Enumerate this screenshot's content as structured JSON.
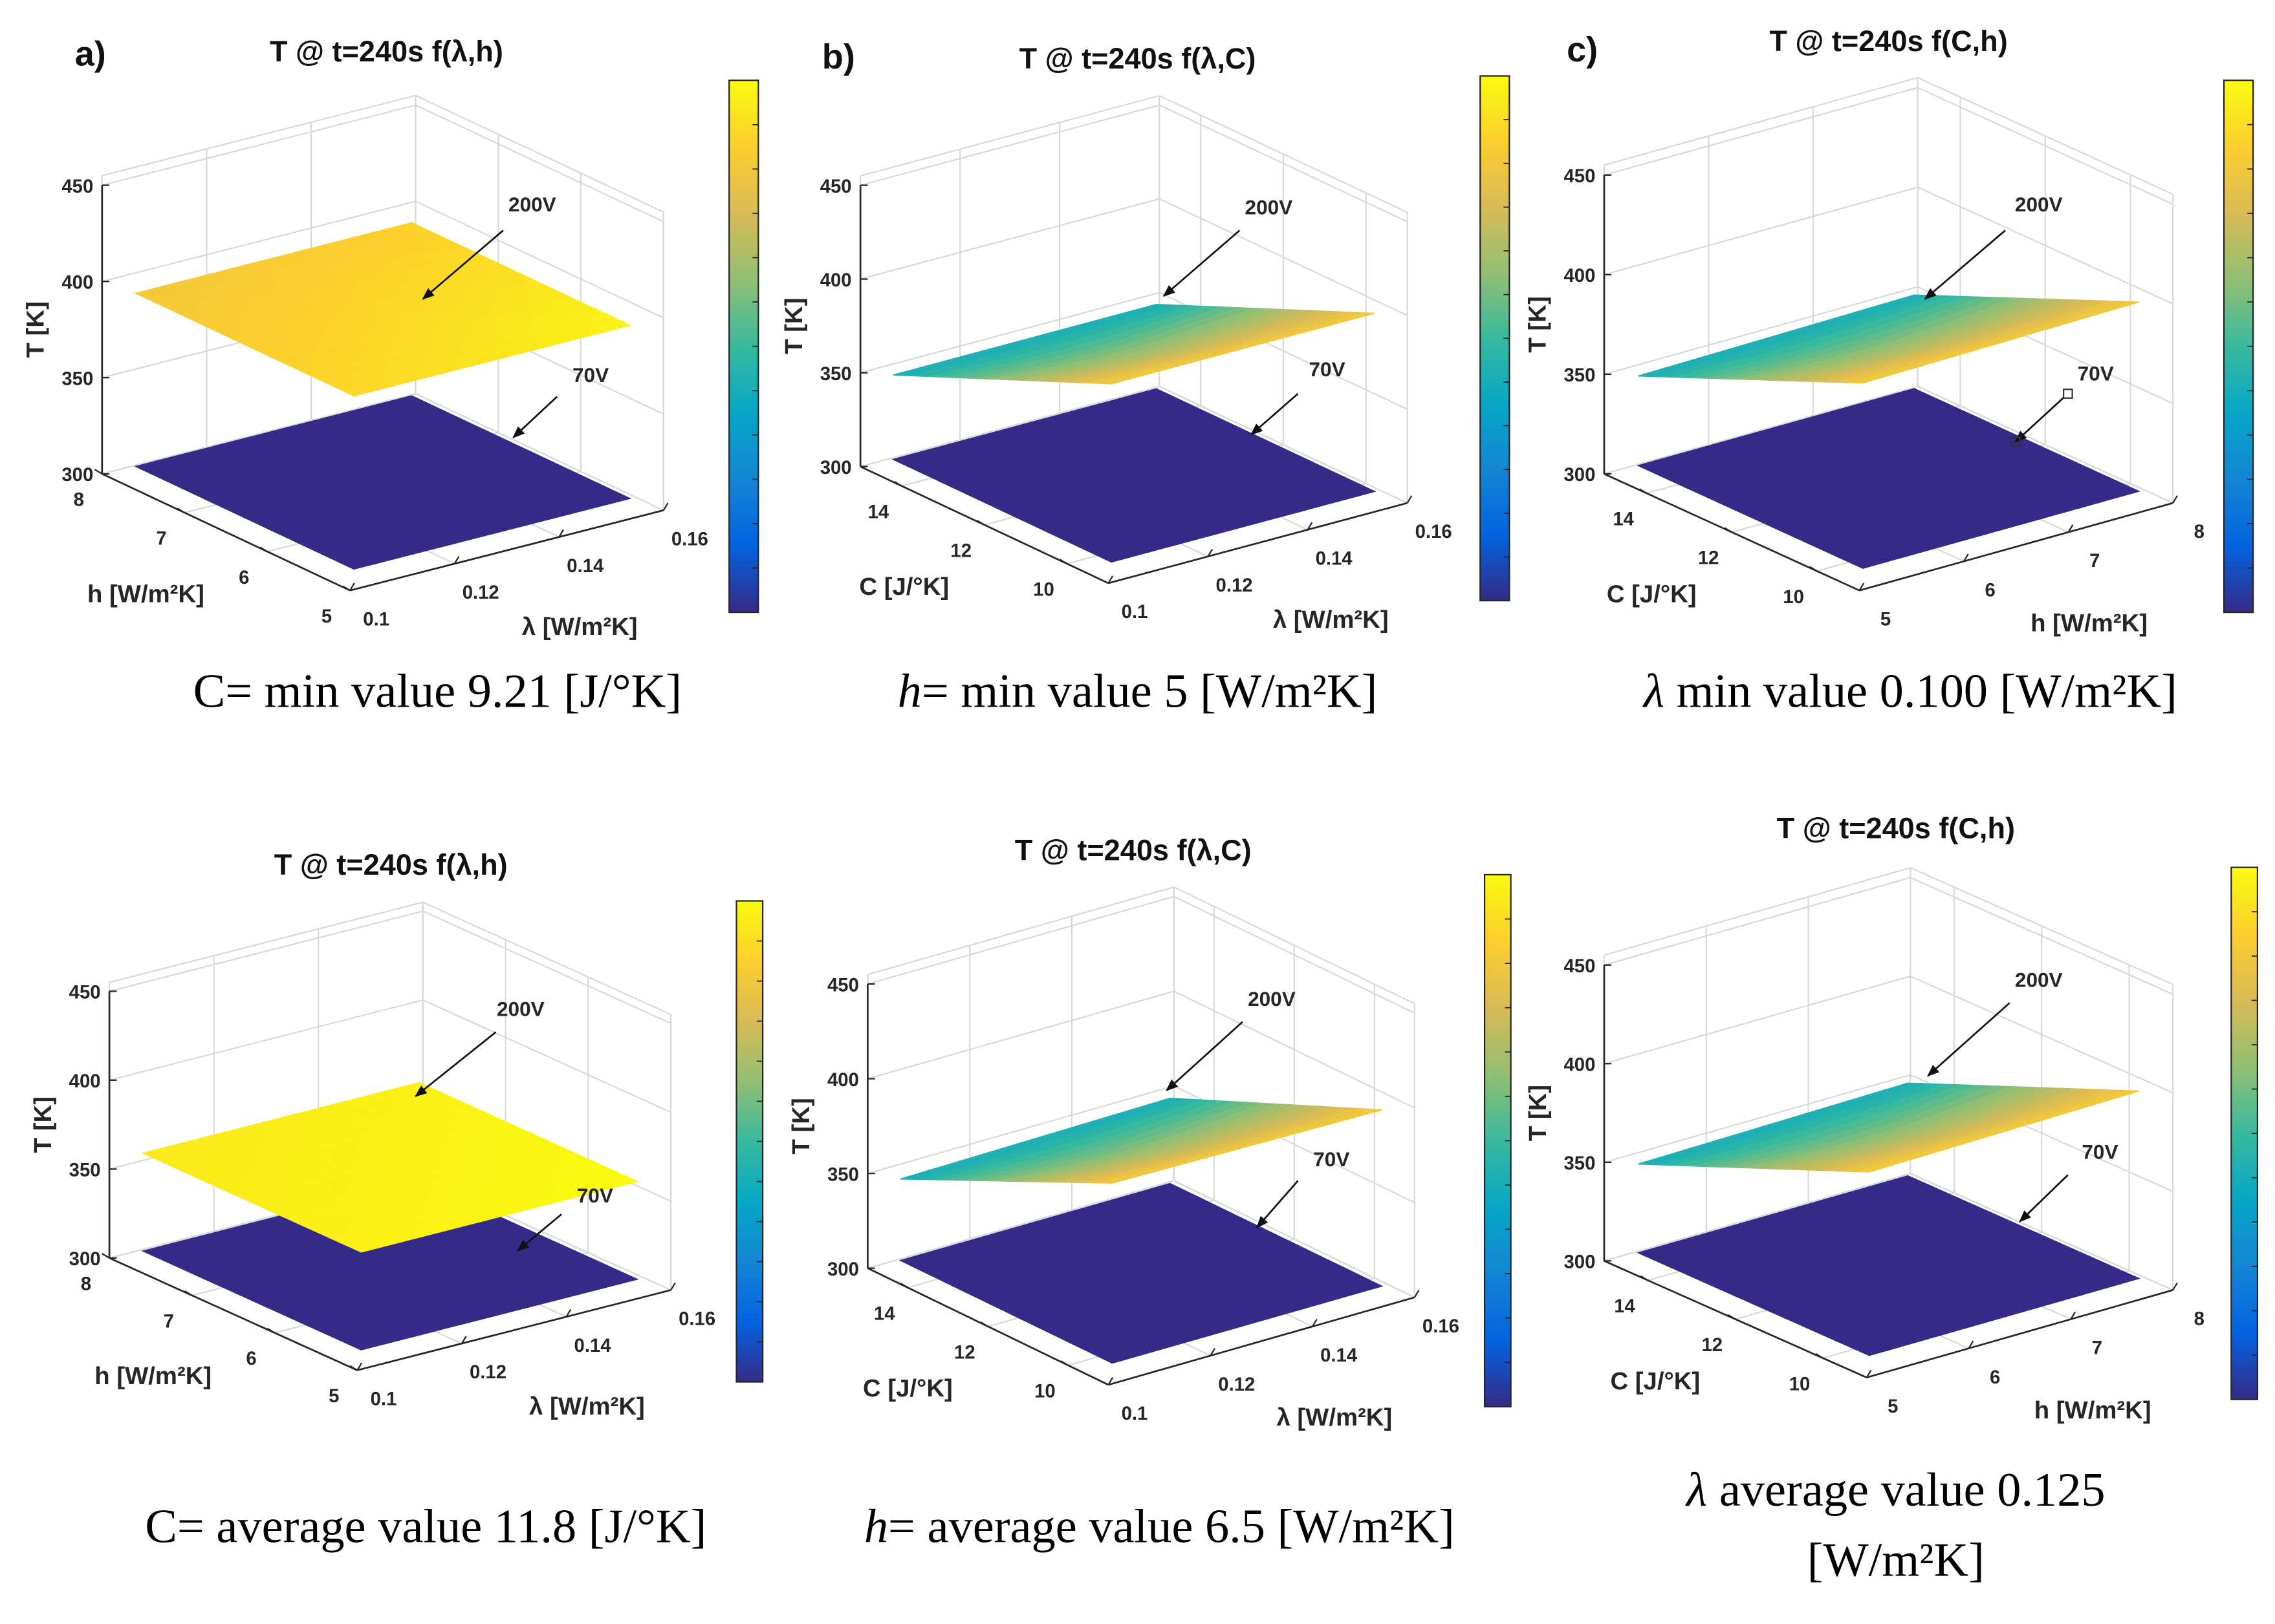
{
  "chart_data": [
    {
      "type": "surface3d",
      "panel_letter": "a)",
      "title": "T @ t=240s f(λ,h)",
      "zlabel": "T [K]",
      "v_label": "h [W/m²K]",
      "u_label": "λ [W/m²K]",
      "v_range": [
        5,
        8
      ],
      "v_ticks": [
        "5",
        "6",
        "7",
        "8"
      ],
      "u_range": [
        0.1,
        0.16
      ],
      "u_ticks": [
        "0.1",
        "0.12",
        "0.14",
        "0.16"
      ],
      "zlim": [
        300,
        450
      ],
      "z_ticks": [
        "300",
        "350",
        "400",
        "450"
      ],
      "colormap": "parula",
      "surfaces": [
        {
          "label": "70V",
          "T_corners": [
            305,
            305,
            305,
            305
          ],
          "color_levels": [
            0,
            0,
            0,
            0
          ]
        },
        {
          "label": "200V",
          "T_corners": [
            395,
            395,
            395,
            395
          ],
          "color_levels": [
            0.9,
            0.98,
            0.88,
            0.84
          ]
        }
      ],
      "caption": {
        "var": "C",
        "var_italic": false,
        "lines": [
          "= min value 9.21 [J/°K]"
        ]
      }
    },
    {
      "type": "surface3d",
      "panel_letter": "b)",
      "title": "T @ t=240s f(λ,C)",
      "zlabel": "T [K]",
      "v_label": "C [J/°K]",
      "u_label": "λ [W/m²K]",
      "v_range": [
        9,
        15
      ],
      "v_ticks": [
        "10",
        "12",
        "14"
      ],
      "u_range": [
        0.1,
        0.16
      ],
      "u_ticks": [
        "0.1",
        "0.12",
        "0.14",
        "0.16"
      ],
      "zlim": [
        300,
        450
      ],
      "z_ticks": [
        "300",
        "350",
        "400",
        "450"
      ],
      "colormap": "parula",
      "surfaces": [
        {
          "label": "70V",
          "T_corners": [
            305,
            305,
            305,
            305
          ],
          "color_levels": [
            0,
            0,
            0,
            0
          ]
        },
        {
          "label": "200V",
          "T_corners": [
            400,
            400,
            350,
            350
          ],
          "color_levels": [
            0.85,
            0.85,
            0.42,
            0.42
          ]
        }
      ],
      "caption": {
        "var": "h",
        "var_italic": true,
        "lines": [
          "= min value 5 [W/m²K]"
        ]
      }
    },
    {
      "type": "surface3d",
      "panel_letter": "c)",
      "title": "T @ t=240s f(C,h)",
      "zlabel": "T [K]",
      "v_label": "C [J/°K]",
      "u_label": "h [W/m²K]",
      "v_range": [
        9,
        15
      ],
      "v_ticks": [
        "10",
        "12",
        "14"
      ],
      "u_range": [
        5,
        8
      ],
      "u_ticks": [
        "5",
        "6",
        "7",
        "8"
      ],
      "zlim": [
        300,
        450
      ],
      "z_ticks": [
        "300",
        "350",
        "400",
        "450"
      ],
      "colormap": "parula",
      "surfaces": [
        {
          "label": "70V",
          "T_corners": [
            305,
            305,
            305,
            305
          ],
          "color_levels": [
            0,
            0,
            0,
            0
          ]
        },
        {
          "label": "200V",
          "T_corners": [
            398,
            400,
            352,
            350
          ],
          "color_levels": [
            0.85,
            0.85,
            0.42,
            0.42
          ]
        }
      ],
      "caption": {
        "var": "λ",
        "var_italic": true,
        "lines": [
          " min value 0.100 [W/m²K]"
        ]
      }
    },
    {
      "type": "surface3d",
      "panel_letter": "",
      "title": "T @ t=240s f(λ,h)",
      "zlabel": "T [K]",
      "v_label": "h [W/m²K]",
      "u_label": "λ [W/m²K]",
      "v_range": [
        5,
        8
      ],
      "v_ticks": [
        "5",
        "6",
        "7",
        "8"
      ],
      "u_range": [
        0.1,
        0.16
      ],
      "u_ticks": [
        "0.1",
        "0.12",
        "0.14",
        "0.16"
      ],
      "zlim": [
        300,
        450
      ],
      "z_ticks": [
        "300",
        "350",
        "400",
        "450"
      ],
      "colormap": "parula",
      "surfaces": [
        {
          "label": "70V",
          "T_corners": [
            305,
            305,
            305,
            305
          ],
          "color_levels": [
            0,
            0,
            0,
            0
          ]
        },
        {
          "label": "200V",
          "T_corners": [
            360,
            360,
            360,
            360
          ],
          "color_levels": [
            0.97,
            1,
            0.97,
            0.95
          ]
        }
      ],
      "caption": {
        "var": "C",
        "var_italic": false,
        "lines": [
          "= average value 11.8 [J/°K]"
        ]
      }
    },
    {
      "type": "surface3d",
      "panel_letter": "",
      "title": "T @ t=240s f(λ,C)",
      "zlabel": "T [K]",
      "v_label": "C [J/°K]",
      "u_label": "λ [W/m²K]",
      "v_range": [
        9,
        15
      ],
      "v_ticks": [
        "10",
        "12",
        "14"
      ],
      "u_range": [
        0.1,
        0.16
      ],
      "u_ticks": [
        "0.1",
        "0.12",
        "0.14",
        "0.16"
      ],
      "zlim": [
        300,
        450
      ],
      "z_ticks": [
        "300",
        "350",
        "400",
        "450"
      ],
      "colormap": "parula",
      "surfaces": [
        {
          "label": "70V",
          "T_corners": [
            305,
            305,
            305,
            305
          ],
          "color_levels": [
            0,
            0,
            0,
            0
          ]
        },
        {
          "label": "200V",
          "T_corners": [
            400,
            398,
            350,
            348
          ],
          "color_levels": [
            0.85,
            0.85,
            0.42,
            0.42
          ]
        }
      ],
      "caption": {
        "var": "h",
        "var_italic": true,
        "lines": [
          "= average value 6.5 [W/m²K]"
        ]
      }
    },
    {
      "type": "surface3d",
      "panel_letter": "",
      "title": "T @ t=240s f(C,h)",
      "zlabel": "T [K]",
      "v_label": "C [J/°K]",
      "u_label": "h [W/m²K]",
      "v_range": [
        9,
        15
      ],
      "v_ticks": [
        "10",
        "12",
        "14"
      ],
      "u_range": [
        5,
        8
      ],
      "u_ticks": [
        "5",
        "6",
        "7",
        "8"
      ],
      "zlim": [
        300,
        450
      ],
      "z_ticks": [
        "300",
        "350",
        "400",
        "450"
      ],
      "colormap": "parula",
      "surfaces": [
        {
          "label": "70V",
          "T_corners": [
            305,
            305,
            305,
            305
          ],
          "color_levels": [
            0,
            0,
            0,
            0
          ]
        },
        {
          "label": "200V",
          "T_corners": [
            398,
            400,
            352,
            350
          ],
          "color_levels": [
            0.85,
            0.85,
            0.42,
            0.42
          ]
        }
      ],
      "caption": {
        "var": "λ",
        "var_italic": true,
        "lines": [
          " average value 0.125",
          "[W/m²K]"
        ]
      }
    }
  ]
}
